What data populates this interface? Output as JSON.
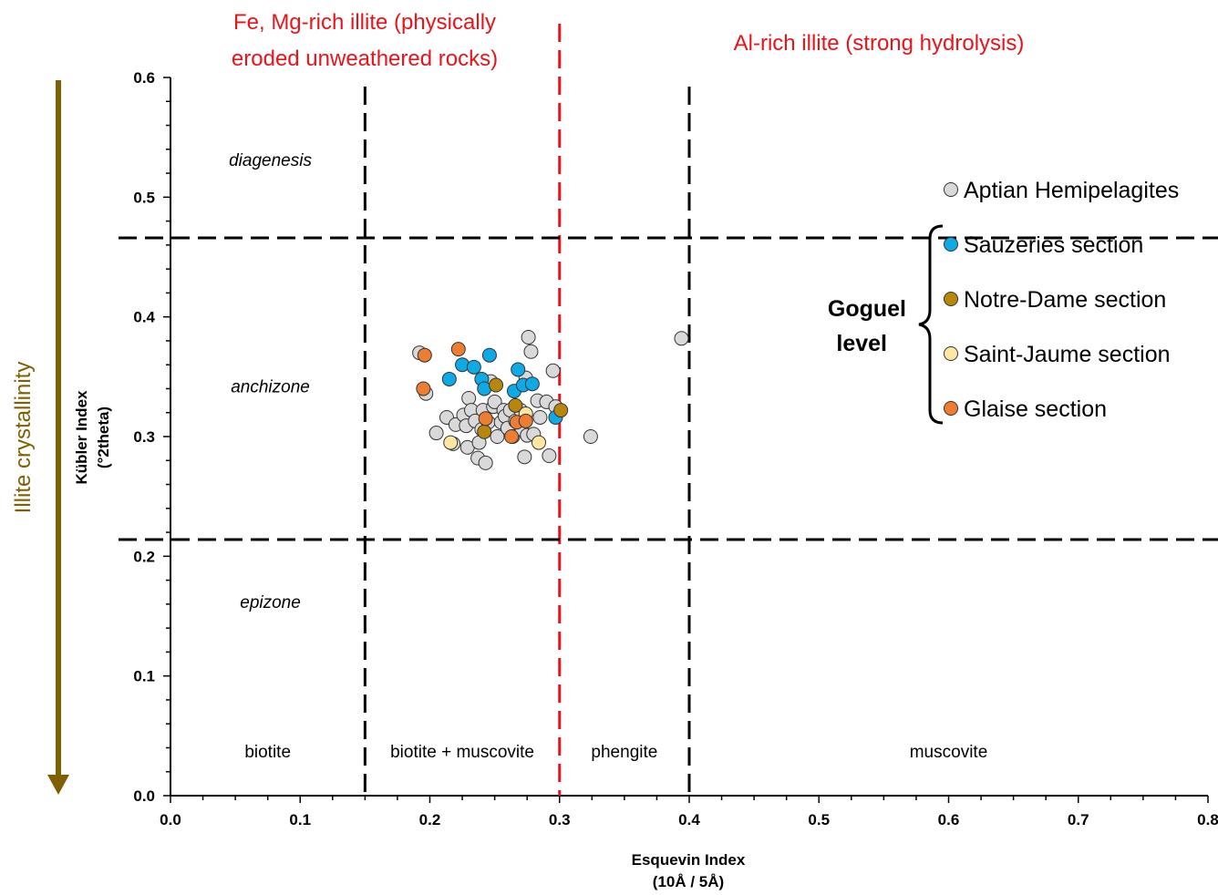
{
  "chart_data": {
    "type": "scatter",
    "xlabel_lines": [
      "Esquevin Index",
      "(10Å / 5Å)"
    ],
    "ylabel_lines": [
      "Kübler Index",
      "(°2theta)"
    ],
    "xlim": [
      0.0,
      0.8
    ],
    "ylim": [
      0.0,
      0.6
    ],
    "x_ticks": [
      "0.0",
      "0.1",
      "0.2",
      "0.3",
      "0.4",
      "0.5",
      "0.6",
      "0.7",
      "0.8"
    ],
    "y_ticks": [
      "0.0",
      "0.1",
      "0.2",
      "0.3",
      "0.4",
      "0.5",
      "0.6"
    ],
    "grid": false,
    "legend_position": "right",
    "vertical_lines": [
      {
        "x": 0.15,
        "style": "dashed",
        "color": "#000000"
      },
      {
        "x": 0.3,
        "style": "dashed",
        "color": "#e8141a"
      },
      {
        "x": 0.4,
        "style": "dashed",
        "color": "#000000"
      }
    ],
    "horizontal_lines": [
      {
        "y": 0.466,
        "style": "dashed",
        "color": "#000000"
      },
      {
        "y": 0.214,
        "style": "dashed",
        "color": "#000000"
      }
    ],
    "zone_labels": [
      {
        "text": "diagenesis",
        "x": 0.077,
        "y": 0.526
      },
      {
        "text": "anchizone",
        "x": 0.077,
        "y": 0.337
      },
      {
        "text": "epizone",
        "x": 0.077,
        "y": 0.157
      }
    ],
    "mineral_labels": [
      {
        "text": "biotite",
        "x": 0.075,
        "y": 0.032
      },
      {
        "text": "biotite + muscovite",
        "x": 0.225,
        "y": 0.032
      },
      {
        "text": "phengite",
        "x": 0.35,
        "y": 0.032
      },
      {
        "text": "muscovite",
        "x": 0.6,
        "y": 0.032
      }
    ],
    "top_labels": [
      {
        "lines": [
          "Fe, Mg-rich illite (physically",
          "eroded unweathered rocks)"
        ]
      },
      {
        "lines": [
          "Al-rich illite (strong hydrolysis)"
        ]
      }
    ],
    "side_label": "Illite crystallinity",
    "side_arrow_color": "#7f6000",
    "bracket_label_lines": [
      "Goguel",
      "level"
    ],
    "series": [
      {
        "name": "Aptian Hemipelagites",
        "color": "#d9d9d9",
        "points": [
          [
            0.192,
            0.37
          ],
          [
            0.197,
            0.336
          ],
          [
            0.205,
            0.303
          ],
          [
            0.213,
            0.316
          ],
          [
            0.218,
            0.294
          ],
          [
            0.22,
            0.31
          ],
          [
            0.226,
            0.318
          ],
          [
            0.228,
            0.309
          ],
          [
            0.229,
            0.291
          ],
          [
            0.23,
            0.332
          ],
          [
            0.232,
            0.322
          ],
          [
            0.235,
            0.313
          ],
          [
            0.237,
            0.282
          ],
          [
            0.238,
            0.295
          ],
          [
            0.24,
            0.306
          ],
          [
            0.241,
            0.322
          ],
          [
            0.243,
            0.278
          ],
          [
            0.245,
            0.312
          ],
          [
            0.247,
            0.346
          ],
          [
            0.249,
            0.325
          ],
          [
            0.25,
            0.329
          ],
          [
            0.252,
            0.3
          ],
          [
            0.255,
            0.312
          ],
          [
            0.257,
            0.322
          ],
          [
            0.258,
            0.317
          ],
          [
            0.26,
            0.307
          ],
          [
            0.262,
            0.322
          ],
          [
            0.264,
            0.3
          ],
          [
            0.266,
            0.313
          ],
          [
            0.27,
            0.322
          ],
          [
            0.271,
            0.306
          ],
          [
            0.273,
            0.283
          ],
          [
            0.274,
            0.349
          ],
          [
            0.275,
            0.301
          ],
          [
            0.276,
            0.383
          ],
          [
            0.278,
            0.371
          ],
          [
            0.28,
            0.302
          ],
          [
            0.283,
            0.33
          ],
          [
            0.285,
            0.316
          ],
          [
            0.29,
            0.329
          ],
          [
            0.292,
            0.284
          ],
          [
            0.295,
            0.355
          ],
          [
            0.297,
            0.325
          ],
          [
            0.324,
            0.3
          ],
          [
            0.394,
            0.382
          ]
        ]
      },
      {
        "name": "Sauzeries section",
        "color": "#0eaae6",
        "points": [
          [
            0.215,
            0.348
          ],
          [
            0.225,
            0.36
          ],
          [
            0.234,
            0.358
          ],
          [
            0.24,
            0.348
          ],
          [
            0.242,
            0.34
          ],
          [
            0.246,
            0.368
          ],
          [
            0.265,
            0.338
          ],
          [
            0.268,
            0.356
          ],
          [
            0.272,
            0.343
          ],
          [
            0.279,
            0.344
          ],
          [
            0.297,
            0.316
          ]
        ]
      },
      {
        "name": "Notre-Dame section",
        "color": "#b8860b",
        "points": [
          [
            0.242,
            0.304
          ],
          [
            0.251,
            0.343
          ],
          [
            0.266,
            0.326
          ],
          [
            0.301,
            0.322
          ]
        ]
      },
      {
        "name": "Saint-Jaume section",
        "color": "#ffe7a1",
        "points": [
          [
            0.216,
            0.295
          ],
          [
            0.274,
            0.319
          ],
          [
            0.284,
            0.295
          ]
        ]
      },
      {
        "name": "Glaise section",
        "color": "#ed7d31",
        "points": [
          [
            0.195,
            0.34
          ],
          [
            0.196,
            0.368
          ],
          [
            0.222,
            0.373
          ],
          [
            0.243,
            0.315
          ],
          [
            0.263,
            0.3
          ],
          [
            0.267,
            0.312
          ],
          [
            0.274,
            0.313
          ]
        ]
      }
    ]
  }
}
